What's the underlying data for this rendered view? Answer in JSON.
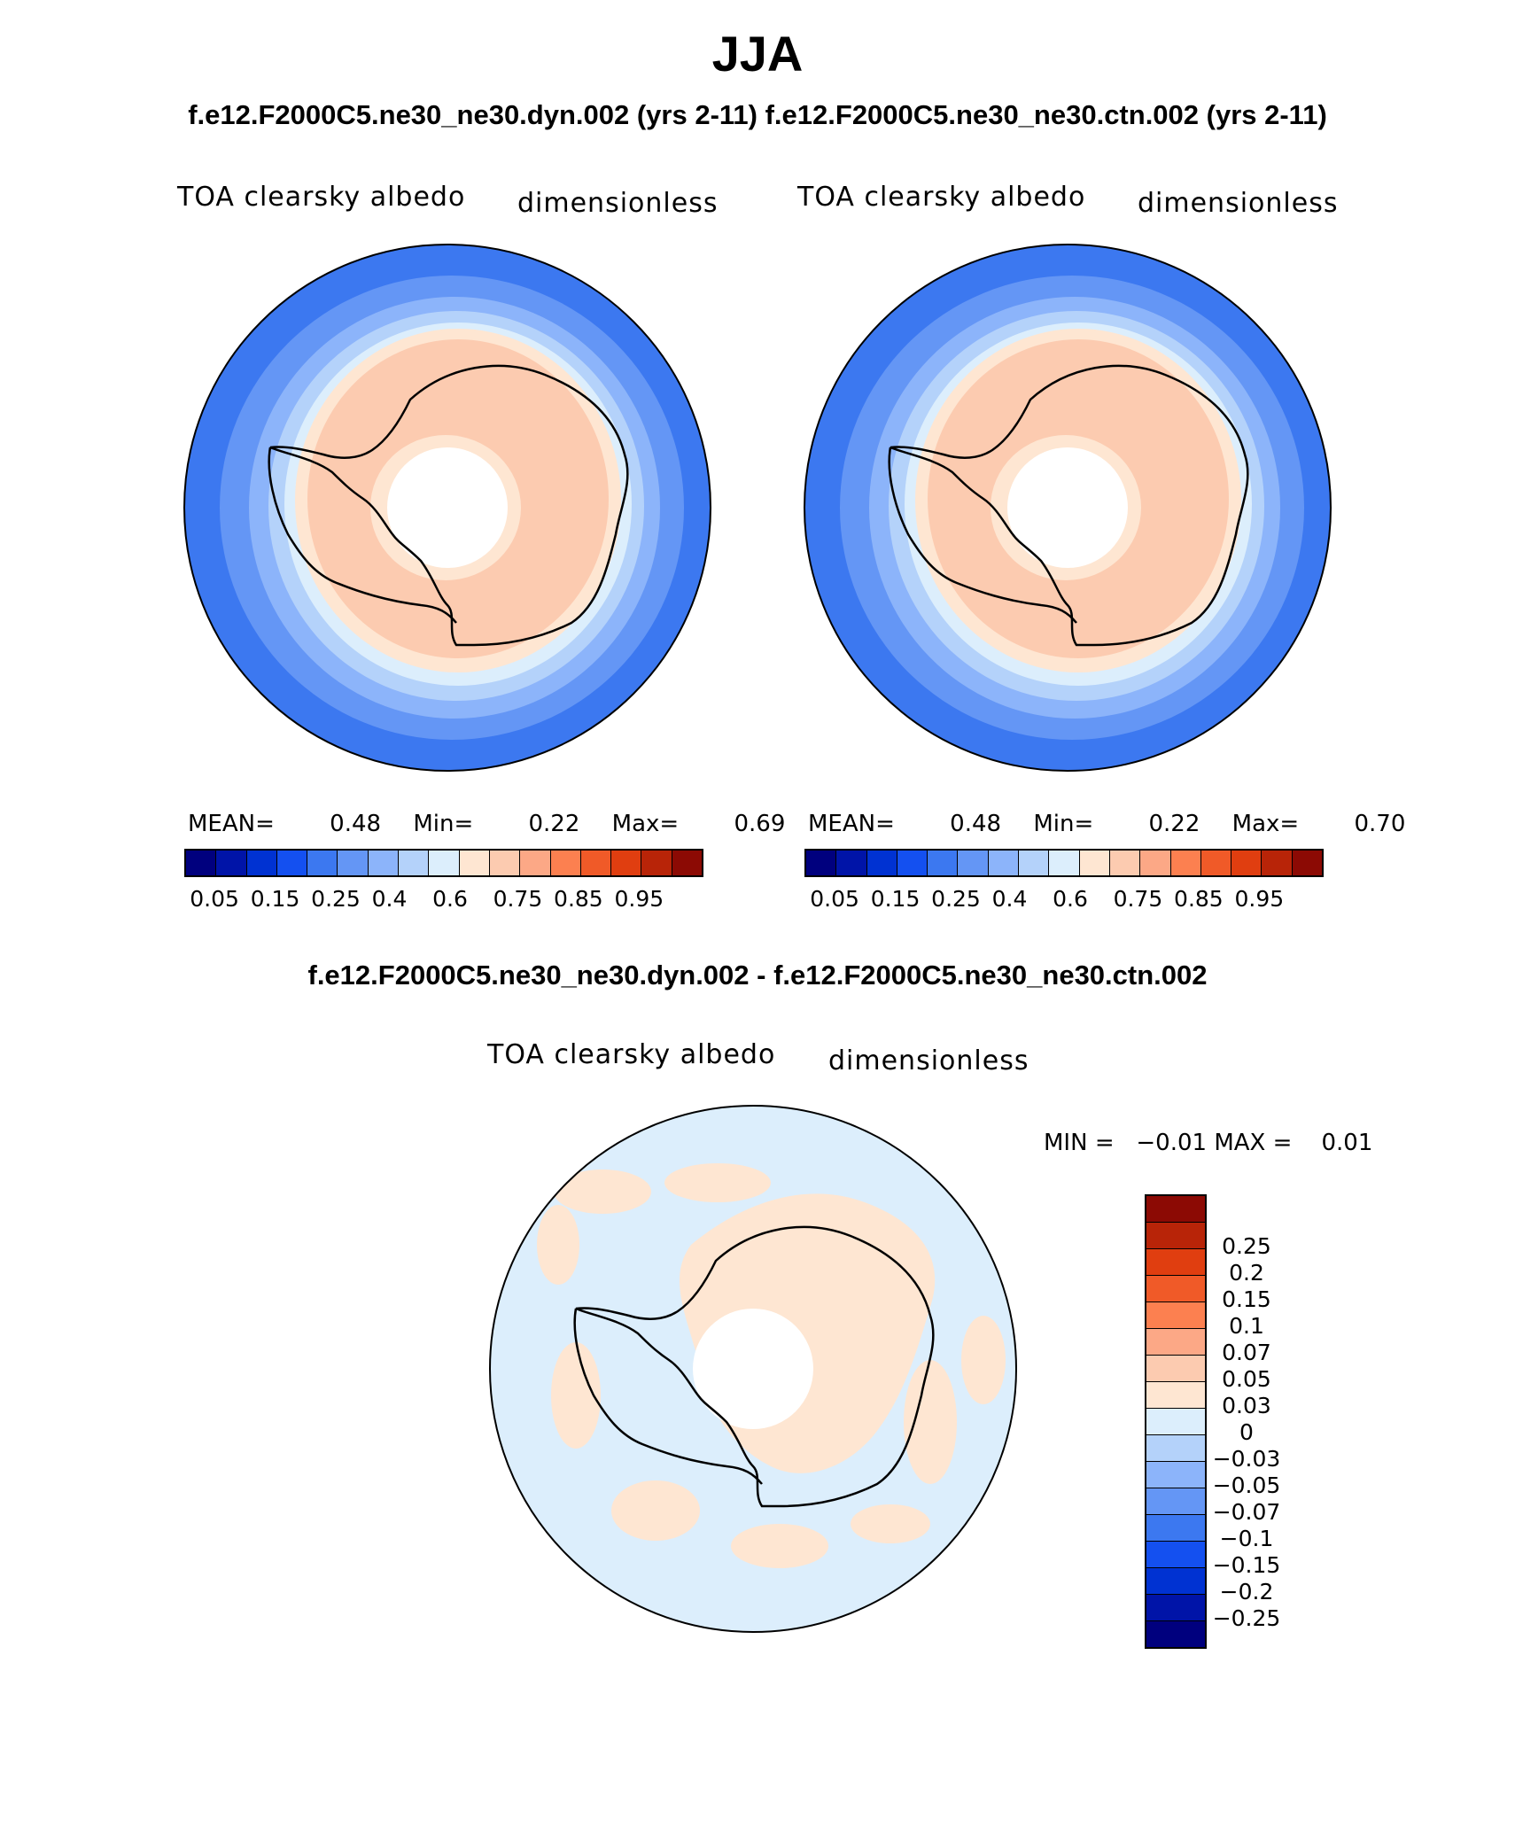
{
  "title": "JJA",
  "subtitle_top": "f.e12.F2000C5.ne30_ne30.dyn.002 (yrs 2-11)  f.e12.F2000C5.ne30_ne30.ctn.002 (yrs 2-11)",
  "subtitle_diff": "f.e12.F2000C5.ne30_ne30.dyn.002 - f.e12.F2000C5.ne30_ne30.ctn.002",
  "panels": [
    {
      "variable": "TOA clearsky albedo",
      "units": "dimensionless",
      "mean_label": "MEAN=",
      "mean": "0.48",
      "min_label": "Min=",
      "min": "0.22",
      "max_label": "Max=",
      "max": "0.69"
    },
    {
      "variable": "TOA clearsky albedo",
      "units": "dimensionless",
      "mean_label": "MEAN=",
      "mean": "0.48",
      "min_label": "Min=",
      "min": "0.22",
      "max_label": "Max=",
      "max": "0.70"
    }
  ],
  "diff_panel": {
    "variable": "TOA clearsky albedo",
    "units": "dimensionless",
    "minmax": "MIN =   −0.01 MAX =    0.01"
  },
  "colorbar_main": {
    "colors": [
      "#00007e",
      "#0014a8",
      "#0032d2",
      "#1450f0",
      "#3c78f0",
      "#6496f5",
      "#8cb4fa",
      "#b4d2fa",
      "#dceefc",
      "#fee6d2",
      "#fccbb0",
      "#fca886",
      "#fc8050",
      "#f05a28",
      "#e03e10",
      "#b82408",
      "#8c0a04"
    ],
    "ticks": [
      "0.05",
      "0.15",
      "0.25",
      "0.4",
      "0.6",
      "0.75",
      "0.85",
      "0.95"
    ]
  },
  "colorbar_diff": {
    "colors_top_to_bottom": [
      "#8c0a04",
      "#b82408",
      "#e03e10",
      "#f05a28",
      "#fc8050",
      "#fca886",
      "#fccbb0",
      "#fee6d2",
      "#dceefc",
      "#b4d2fa",
      "#8cb4fa",
      "#6496f5",
      "#3c78f0",
      "#1450f0",
      "#0032d2",
      "#0014a8",
      "#00007e"
    ],
    "ticks": [
      "0.25",
      "0.2",
      "0.15",
      "0.1",
      "0.07",
      "0.05",
      "0.03",
      "0",
      "−0.03",
      "−0.05",
      "−0.07",
      "−0.1",
      "−0.15",
      "−0.2",
      "−0.25"
    ]
  }
}
